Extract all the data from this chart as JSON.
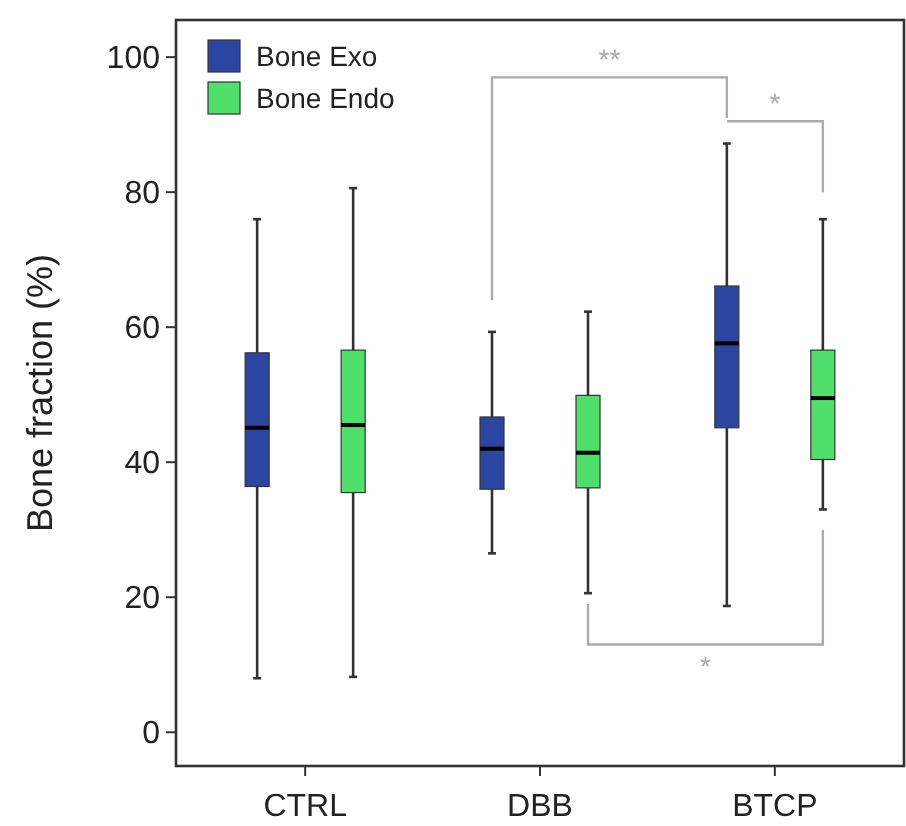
{
  "chart_data": {
    "type": "box",
    "ylabel": "Bone fraction (%)",
    "categories": [
      "CTRL",
      "DBB",
      "BTCP"
    ],
    "series": [
      {
        "name": "Bone Exo",
        "color": "#2a46a0",
        "boxes": [
          {
            "low": 8,
            "q1": 36.4,
            "median": 45.1,
            "q3": 56.2,
            "high": 76
          },
          {
            "low": 26.5,
            "q1": 36,
            "median": 42,
            "q3": 46.7,
            "high": 59.3
          },
          {
            "low": 18.7,
            "q1": 45.1,
            "median": 57.6,
            "q3": 66.1,
            "high": 87.2
          }
        ]
      },
      {
        "name": "Bone Endo",
        "color": "#4ee06a",
        "boxes": [
          {
            "low": 8.2,
            "q1": 35.5,
            "median": 45.5,
            "q3": 56.6,
            "high": 80.6
          },
          {
            "low": 20.6,
            "q1": 36.2,
            "median": 41.4,
            "q3": 49.9,
            "high": 62.3
          },
          {
            "low": 33,
            "q1": 40.4,
            "median": 49.5,
            "q3": 56.6,
            "high": 76
          }
        ]
      }
    ],
    "ylim": [
      -5,
      105.5
    ],
    "yticks": [
      0,
      20,
      40,
      60,
      80,
      100
    ],
    "grid": false,
    "legend": "top left",
    "annotations": [
      "**",
      "*",
      "*"
    ]
  }
}
